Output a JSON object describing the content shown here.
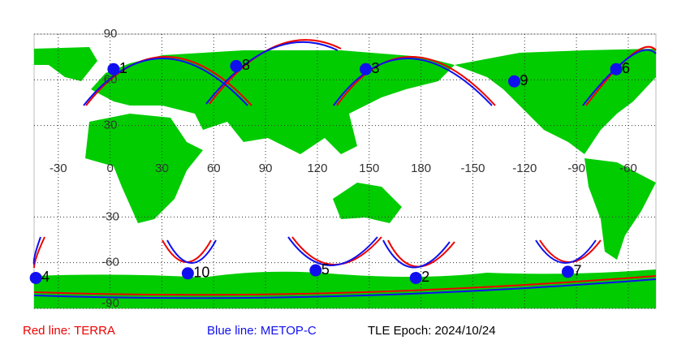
{
  "map": {
    "lonlim": [
      -44,
      316
    ],
    "latlim": [
      -90,
      90
    ],
    "lonticks": [
      -30,
      0,
      30,
      60,
      90,
      120,
      150,
      180,
      {
        "value": 210,
        "label": "-150"
      },
      {
        "value": 240,
        "label": "-120"
      },
      {
        "value": 270,
        "label": "-90"
      },
      {
        "value": 300,
        "label": "-60"
      }
    ],
    "latticks": [
      90,
      60,
      30,
      -30,
      -60,
      -90
    ],
    "points": [
      {
        "label": "1",
        "lon": 2,
        "lat": 67
      },
      {
        "label": "2",
        "lon": 177,
        "lat": -70
      },
      {
        "label": "3",
        "lon": 148,
        "lat": 67
      },
      {
        "label": "4",
        "lon": -43,
        "lat": -70
      },
      {
        "label": "5",
        "lon": 119,
        "lat": -65
      },
      {
        "label": "6",
        "lon": 293,
        "lat": 67
      },
      {
        "label": "7",
        "lon": 265,
        "lat": -66
      },
      {
        "label": "8",
        "lon": 73,
        "lat": 69
      },
      {
        "label": "9",
        "lon": 234,
        "lat": 59
      },
      {
        "label": "10",
        "lon": 45,
        "lat": -67
      }
    ],
    "point_color": "#1010ee",
    "legend": {
      "red": "Red line: TERRA",
      "blue": "Blue line: METOP-C",
      "epoch": "TLE Epoch: 2024/10/24"
    }
  }
}
